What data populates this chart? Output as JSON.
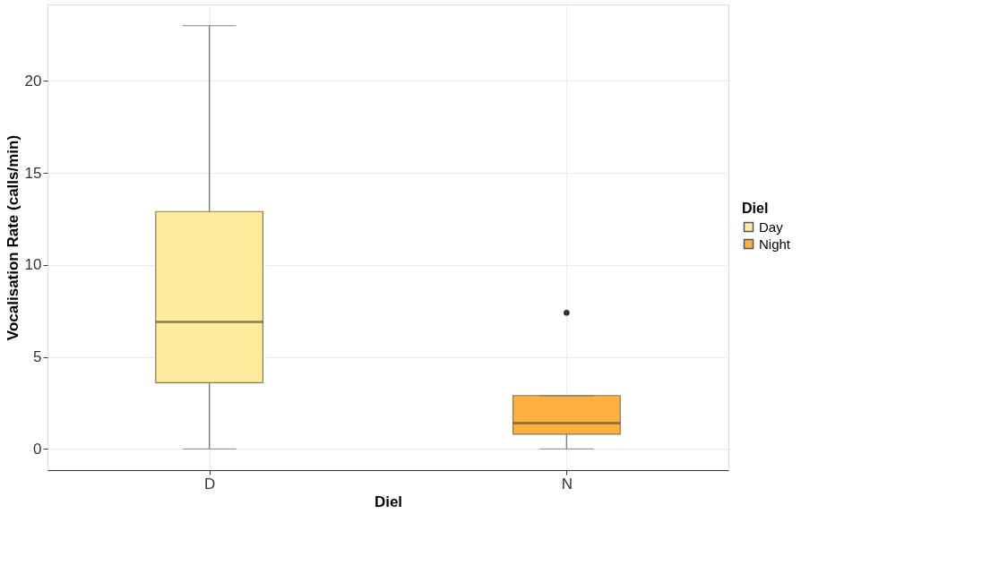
{
  "chart_data": {
    "type": "box",
    "xlabel": "Diel",
    "ylabel": "Vocalisation Rate (calls/min)",
    "legend_title": "Diel",
    "categories": [
      "D",
      "N"
    ],
    "series": [
      {
        "name": "Day",
        "color": "#feeb9e",
        "boxes": [
          {
            "low": 0,
            "q1": 3.6,
            "median": 6.9,
            "q3": 12.9,
            "high": 23.0
          },
          null
        ]
      },
      {
        "name": "Night",
        "color": "#fbb040",
        "boxes": [
          null,
          {
            "low": 0,
            "q1": 0.8,
            "median": 1.4,
            "q3": 2.9,
            "high": 2.9,
            "outliers": [
              7.4
            ]
          }
        ]
      }
    ],
    "ylim": [
      -1.15,
      24.15
    ],
    "yticks": [
      0,
      5,
      10,
      15,
      20
    ],
    "grid": true,
    "legend": "right"
  }
}
